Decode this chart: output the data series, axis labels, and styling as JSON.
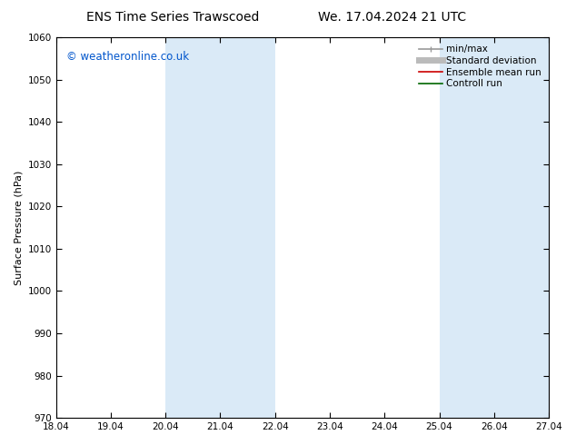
{
  "title_left": "ENS Time Series Trawscoed",
  "title_right": "We. 17.04.2024 21 UTC",
  "ylabel": "Surface Pressure (hPa)",
  "ylim": [
    970,
    1060
  ],
  "yticks": [
    970,
    980,
    990,
    1000,
    1010,
    1020,
    1030,
    1040,
    1050,
    1060
  ],
  "xlim_start": 0.0,
  "xlim_end": 9.0,
  "xtick_labels": [
    "18.04",
    "19.04",
    "20.04",
    "21.04",
    "22.04",
    "23.04",
    "24.04",
    "25.04",
    "26.04",
    "27.04"
  ],
  "xtick_positions": [
    0,
    1,
    2,
    3,
    4,
    5,
    6,
    7,
    8,
    9
  ],
  "shaded_regions": [
    {
      "xmin": 2.0,
      "xmax": 4.0,
      "color": "#daeaf7"
    },
    {
      "xmin": 7.0,
      "xmax": 9.0,
      "color": "#daeaf7"
    }
  ],
  "watermark_text": "© weatheronline.co.uk",
  "watermark_color": "#0055cc",
  "legend_entries": [
    {
      "label": "min/max",
      "color": "#999999",
      "lw": 1.2,
      "style": "minmax"
    },
    {
      "label": "Standard deviation",
      "color": "#bbbbbb",
      "lw": 5,
      "style": "line"
    },
    {
      "label": "Ensemble mean run",
      "color": "#cc0000",
      "lw": 1.2,
      "style": "line"
    },
    {
      "label": "Controll run",
      "color": "#006600",
      "lw": 1.2,
      "style": "line"
    }
  ],
  "bg_color": "#ffffff",
  "spine_color": "#000000",
  "title_fontsize": 10,
  "axis_label_fontsize": 8,
  "tick_fontsize": 7.5,
  "watermark_fontsize": 8.5,
  "legend_fontsize": 7.5
}
